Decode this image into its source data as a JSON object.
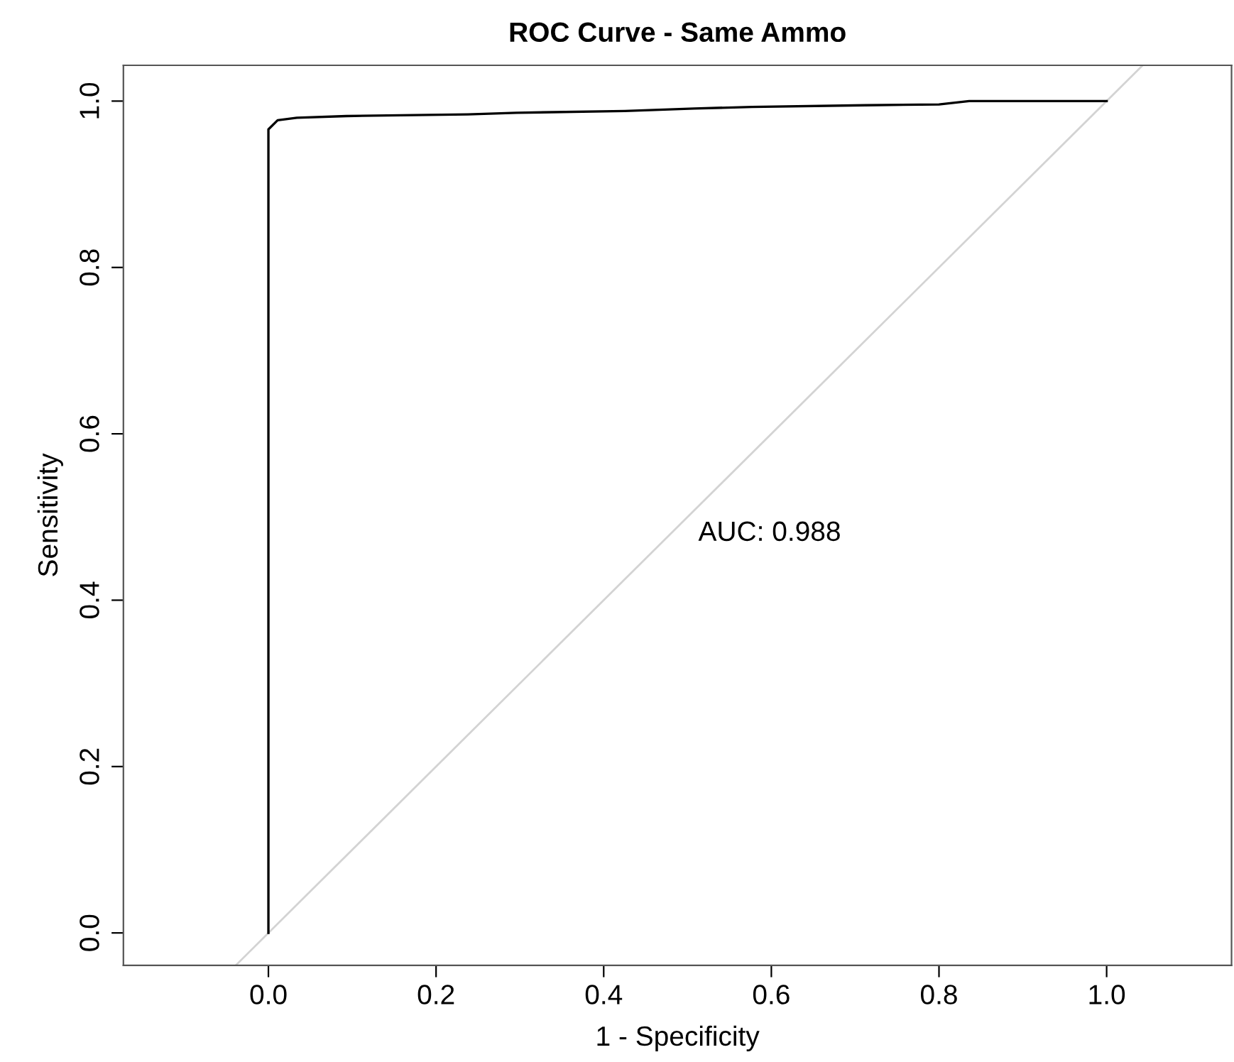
{
  "chart_data": {
    "type": "line",
    "title": "ROC Curve - Same Ammo",
    "xlabel": "1 - Specificity",
    "ylabel": "Sensitivity",
    "xlim": [
      -0.173,
      1.149
    ],
    "ylim": [
      -0.039,
      1.043
    ],
    "xticks": [
      {
        "value": 0,
        "label": "0.0"
      },
      {
        "value": 0.2,
        "label": "0.2"
      },
      {
        "value": 0.4,
        "label": "0.4"
      },
      {
        "value": 0.6,
        "label": "0.6"
      },
      {
        "value": 0.8,
        "label": "0.8"
      },
      {
        "value": 1,
        "label": "1.0"
      }
    ],
    "yticks": [
      {
        "value": 0,
        "label": "0.0"
      },
      {
        "value": 0.2,
        "label": "0.2"
      },
      {
        "value": 0.4,
        "label": "0.4"
      },
      {
        "value": 0.6,
        "label": "0.6"
      },
      {
        "value": 0.8,
        "label": "0.8"
      },
      {
        "value": 1,
        "label": "1.0"
      }
    ],
    "grid": false,
    "legend": false,
    "marker": "none",
    "line_style": "solid",
    "annotations": [
      "AUC: 0.988"
    ],
    "series": [
      {
        "color": "#d3d3d3",
        "x": [
          -0.039,
          1.043
        ],
        "values": [
          -0.039,
          1.043
        ]
      },
      {
        "color": "#000000",
        "x": [
          0,
          0,
          0.011,
          0.034,
          0.093,
          0.238,
          0.296,
          0.425,
          0.508,
          0.577,
          0.712,
          0.8,
          0.836,
          1.0
        ],
        "values": [
          0,
          0.966,
          0.977,
          0.98,
          0.982,
          0.984,
          0.986,
          0.988,
          0.991,
          0.993,
          0.995,
          0.996,
          1.0,
          1.0
        ]
      }
    ]
  }
}
